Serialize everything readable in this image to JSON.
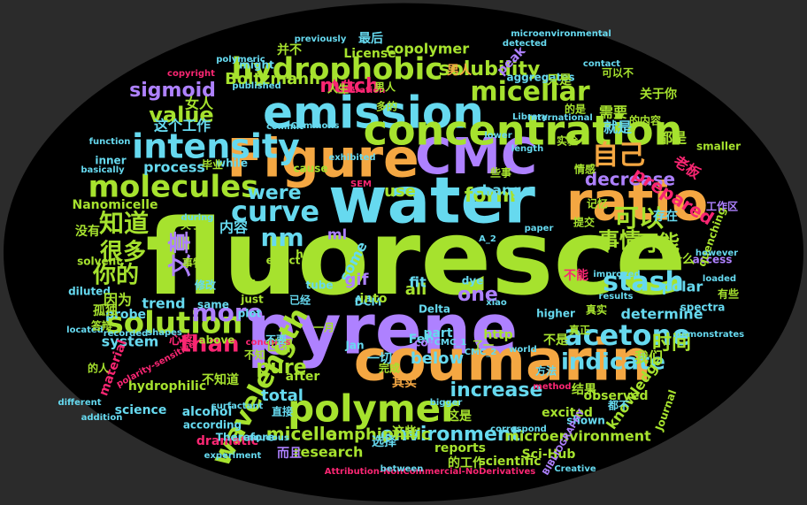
{
  "background": "#2b2b2b",
  "palette": [
    "#a6e22e",
    "#f4a742",
    "#66d9ef",
    "#ae81ff",
    "#f92672",
    "#e6db74",
    "#56b6c2",
    "#fd971f"
  ],
  "words": [
    {
      "text": "fluoresce",
      "color": "#a6e22e"
    },
    {
      "text": "pyrene",
      "color": "#ae81ff"
    },
    {
      "text": "water",
      "color": "#66d9ef"
    },
    {
      "text": "coumarin",
      "color": "#f4a742"
    },
    {
      "text": "ratio",
      "color": "#f4a742"
    },
    {
      "text": "Figure",
      "color": "#f4a742"
    },
    {
      "text": "CMC",
      "color": "#ae81ff"
    },
    {
      "text": "emission",
      "color": "#66d9ef"
    },
    {
      "text": "concentration",
      "color": "#a6e22e"
    },
    {
      "text": "polymer",
      "color": "#a6e22e"
    },
    {
      "text": "intensity",
      "color": "#66d9ef"
    },
    {
      "text": "molecules",
      "color": "#a6e22e"
    },
    {
      "text": "hydrophobic",
      "color": "#a6e22e"
    },
    {
      "text": "solution",
      "color": "#a6e22e"
    },
    {
      "text": "wavelength",
      "color": "#a6e22e"
    },
    {
      "text": "acetone",
      "color": "#66d9ef"
    },
    {
      "text": "micellar",
      "color": "#a6e22e"
    },
    {
      "text": "自己",
      "color": "#f4a742"
    },
    {
      "text": "知道",
      "color": "#a6e22e"
    },
    {
      "text": "可以",
      "color": "#a6e22e"
    },
    {
      "text": "more",
      "color": "#ae81ff"
    },
    {
      "text": "curve",
      "color": "#66d9ef"
    },
    {
      "text": "nm",
      "color": "#66d9ef"
    },
    {
      "text": "than",
      "color": "#f92672"
    },
    {
      "text": "stash",
      "color": "#66d9ef"
    },
    {
      "text": "indicate",
      "color": "#66d9ef"
    },
    {
      "text": "solubility",
      "color": "#a6e22e"
    },
    {
      "text": "value",
      "color": "#a6e22e"
    },
    {
      "text": "were",
      "color": "#66d9ef"
    },
    {
      "text": "form",
      "color": "#a6e22e"
    },
    {
      "text": "environment",
      "color": "#66d9ef"
    },
    {
      "text": "increase",
      "color": "#66d9ef"
    },
    {
      "text": "文章",
      "color": "#ae81ff"
    },
    {
      "text": "很多",
      "color": "#a6e22e"
    },
    {
      "text": "你的",
      "color": "#a6e22e"
    },
    {
      "text": "事情",
      "color": "#a6e22e"
    },
    {
      "text": "可能",
      "color": "#a6e22e"
    },
    {
      "text": "时间",
      "color": "#a6e22e"
    },
    {
      "text": "sigmoid",
      "color": "#ae81ff"
    },
    {
      "text": "Boltzmann",
      "color": "#a6e22e"
    },
    {
      "text": "much",
      "color": "#f92672"
    },
    {
      "text": "pure",
      "color": "#a6e22e"
    },
    {
      "text": "total",
      "color": "#66d9ef"
    },
    {
      "text": "amphiphilic",
      "color": "#a6e22e"
    },
    {
      "text": "micelle",
      "color": "#a6e22e"
    },
    {
      "text": "research",
      "color": "#a6e22e"
    },
    {
      "text": "microenvironment",
      "color": "#a6e22e"
    },
    {
      "text": "copolymer",
      "color": "#a6e22e"
    },
    {
      "text": "determine",
      "color": "#66d9ef"
    },
    {
      "text": "polar",
      "color": "#66d9ef"
    },
    {
      "text": "trend",
      "color": "#66d9ef"
    },
    {
      "text": "process",
      "color": "#66d9ef"
    },
    {
      "text": "change",
      "color": "#66d9ef"
    },
    {
      "text": "below",
      "color": "#66d9ef"
    },
    {
      "text": "system",
      "color": "#66d9ef"
    },
    {
      "text": "probe",
      "color": "#66d9ef"
    },
    {
      "text": "Nanomicelle",
      "color": "#a6e22e"
    },
    {
      "text": "decrease",
      "color": "#ae81ff"
    },
    {
      "text": "prepared",
      "color": "#f92672"
    },
    {
      "text": "knowledge",
      "color": "#a6e22e"
    },
    {
      "text": "observed",
      "color": "#a6e22e"
    },
    {
      "text": "excited",
      "color": "#a6e22e"
    },
    {
      "text": "Sci-Hub",
      "color": "#a6e22e"
    },
    {
      "text": "hydrophilic",
      "color": "#a6e22e"
    },
    {
      "text": "science",
      "color": "#66d9ef"
    },
    {
      "text": "alcohol",
      "color": "#66d9ef"
    },
    {
      "text": "material",
      "color": "#f92672"
    },
    {
      "text": "dramatic",
      "color": "#f92672"
    },
    {
      "text": "diluted",
      "color": "#66d9ef"
    },
    {
      "text": "solvent",
      "color": "#a6e22e"
    },
    {
      "text": "scientific",
      "color": "#a6e22e"
    },
    {
      "text": "reports",
      "color": "#a6e22e"
    },
    {
      "text": "access",
      "color": "#ae81ff"
    },
    {
      "text": "spectra",
      "color": "#66d9ef"
    },
    {
      "text": "peak",
      "color": "#ae81ff"
    },
    {
      "text": "aggregates",
      "color": "#66d9ef"
    },
    {
      "text": "License",
      "color": "#a6e22e"
    },
    {
      "text": "smaller",
      "color": "#a6e22e"
    },
    {
      "text": "quenching",
      "color": "#a6e22e"
    },
    {
      "text": "shown",
      "color": "#66d9ef"
    },
    {
      "text": "Journal",
      "color": "#a6e22e"
    },
    {
      "text": "而且",
      "color": "#ae81ff"
    },
    {
      "text": "都是",
      "color": "#a6e22e"
    },
    {
      "text": "我们",
      "color": "#a6e22e"
    },
    {
      "text": "因为",
      "color": "#a6e22e"
    },
    {
      "text": "世界",
      "color": "#a6e22e"
    },
    {
      "text": "不知道",
      "color": "#a6e22e"
    },
    {
      "text": "人生",
      "color": "#f92672"
    },
    {
      "text": "男人",
      "color": "#f4a742"
    },
    {
      "text": "女人",
      "color": "#a6e22e"
    },
    {
      "text": "需要",
      "color": "#a6e22e"
    },
    {
      "text": "就是",
      "color": "#66d9ef"
    },
    {
      "text": "什么",
      "color": "#a6e22e"
    },
    {
      "text": "存在",
      "color": "#66d9ef"
    },
    {
      "text": "没有",
      "color": "#a6e22e"
    },
    {
      "text": "内容",
      "color": "#66d9ef"
    },
    {
      "text": "孤独",
      "color": "#a6e22e"
    },
    {
      "text": "心疼",
      "color": "#f92672"
    },
    {
      "text": "选择",
      "color": "#66d9ef"
    },
    {
      "text": "一切",
      "color": "#66d9ef"
    },
    {
      "text": "这个工作",
      "color": "#66d9ef"
    },
    {
      "text": "Feb",
      "color": "#66d9ef"
    },
    {
      "text": "http",
      "color": "#a6e22e"
    },
    {
      "text": "ml",
      "color": "#ae81ff"
    },
    {
      "text": "one",
      "color": "#ae81ff"
    },
    {
      "text": "all",
      "color": "#a6e22e"
    },
    {
      "text": "use",
      "color": "#a6e22e"
    },
    {
      "text": "some",
      "color": "#66d9ef"
    },
    {
      "text": "gif",
      "color": "#ae81ff"
    },
    {
      "text": "part",
      "color": "#66d9ef"
    },
    {
      "text": "fit",
      "color": "#66d9ef"
    },
    {
      "text": "DCM",
      "color": "#66d9ef"
    },
    {
      "text": "Delta",
      "color": "#66d9ef"
    },
    {
      "text": "Therefore",
      "color": "#66d9ef"
    },
    {
      "text": "according",
      "color": "#66d9ef"
    },
    {
      "text": "Creative",
      "color": "#66d9ef"
    },
    {
      "text": "BIBLIOGRAPHY",
      "color": "#ae81ff"
    },
    {
      "text": "Attribution-NonCommercial-NoDerivatives",
      "color": "#f92672"
    },
    {
      "text": "International",
      "color": "#66d9ef"
    },
    {
      "text": "Library",
      "color": "#66d9ef"
    },
    {
      "text": "copyright",
      "color": "#f92672"
    },
    {
      "text": "polarity-sensitive",
      "color": "#f92672"
    },
    {
      "text": "previously",
      "color": "#66d9ef"
    },
    {
      "text": "polymeric",
      "color": "#66d9ef"
    },
    {
      "text": "might",
      "color": "#66d9ef"
    },
    {
      "text": "inner",
      "color": "#66d9ef"
    },
    {
      "text": "while",
      "color": "#66d9ef"
    },
    {
      "text": "little",
      "color": "#a6e22e"
    },
    {
      "text": "just",
      "color": "#a6e22e"
    },
    {
      "text": "plot",
      "color": "#66d9ef"
    },
    {
      "text": "same",
      "color": "#66d9ef"
    },
    {
      "text": "above",
      "color": "#a6e22e"
    },
    {
      "text": "after",
      "color": "#a6e22e"
    },
    {
      "text": "help",
      "color": "#a6e22e"
    },
    {
      "text": "cause",
      "color": "#a6e22e"
    },
    {
      "text": "Jan",
      "color": "#66d9ef"
    },
    {
      "text": "into",
      "color": "#a6e22e"
    },
    {
      "text": "dye",
      "color": "#66d9ef"
    },
    {
      "text": "xiao",
      "color": "#66d9ef"
    },
    {
      "text": "core",
      "color": "#ae81ff"
    },
    {
      "text": "higher",
      "color": "#66d9ef"
    },
    {
      "text": "tube",
      "color": "#66d9ef"
    },
    {
      "text": "effect",
      "color": "#a6e22e"
    },
    {
      "text": "function",
      "color": "#66d9ef"
    },
    {
      "text": "basically",
      "color": "#66d9ef"
    },
    {
      "text": "during",
      "color": "#66d9ef"
    },
    {
      "text": "recorded",
      "color": "#66d9ef"
    },
    {
      "text": "located",
      "color": "#66d9ef"
    },
    {
      "text": "different",
      "color": "#66d9ef"
    },
    {
      "text": "addition",
      "color": "#66d9ef"
    },
    {
      "text": "experiment",
      "color": "#66d9ef"
    },
    {
      "text": "between",
      "color": "#66d9ef"
    },
    {
      "text": "exhibited",
      "color": "#66d9ef"
    },
    {
      "text": "improved",
      "color": "#66d9ef"
    },
    {
      "text": "results",
      "color": "#66d9ef"
    },
    {
      "text": "demonstrates",
      "color": "#66d9ef"
    },
    {
      "text": "loaded",
      "color": "#66d9ef"
    },
    {
      "text": "however",
      "color": "#66d9ef"
    },
    {
      "text": "contact",
      "color": "#66d9ef"
    },
    {
      "text": "detected",
      "color": "#66d9ef"
    },
    {
      "text": "published",
      "color": "#66d9ef"
    },
    {
      "text": "microenvironmental",
      "color": "#66d9ef"
    },
    {
      "text": "operation",
      "color": "#f92672"
    },
    {
      "text": "Commons",
      "color": "#66d9ef"
    },
    {
      "text": "commit",
      "color": "#66d9ef"
    },
    {
      "text": "shapes",
      "color": "#66d9ef"
    },
    {
      "text": "concerns",
      "color": "#f92672"
    },
    {
      "text": "surfactant",
      "color": "#66d9ef"
    },
    {
      "text": "aqueous",
      "color": "#66d9ef"
    },
    {
      "text": "correspond",
      "color": "#66d9ef"
    },
    {
      "text": "bigger",
      "color": "#66d9ef"
    },
    {
      "text": "world",
      "color": "#66d9ef"
    },
    {
      "text": "method",
      "color": "#f92672"
    },
    {
      "text": "paper",
      "color": "#66d9ef"
    },
    {
      "text": "lower",
      "color": "#66d9ef"
    },
    {
      "text": "length",
      "color": "#66d9ef"
    },
    {
      "text": "SEM",
      "color": "#f92672"
    },
    {
      "text": "CMC_1",
      "color": "#66d9ef"
    },
    {
      "text": "CMC_2",
      "color": "#66d9ef"
    },
    {
      "text": "A_1",
      "color": "#66d9ef"
    },
    {
      "text": "A_2",
      "color": "#66d9ef"
    },
    {
      "text": "不是",
      "color": "#a6e22e"
    },
    {
      "text": "不能",
      "color": "#f92672"
    },
    {
      "text": "只是",
      "color": "#a6e22e"
    },
    {
      "text": "并不",
      "color": "#a6e22e"
    },
    {
      "text": "最后",
      "color": "#66d9ef"
    },
    {
      "text": "人生",
      "color": "#a6e22e"
    },
    {
      "text": "关于你",
      "color": "#a6e22e"
    },
    {
      "text": "工作区",
      "color": "#ae81ff"
    },
    {
      "text": "有些",
      "color": "#a6e22e"
    },
    {
      "text": "其实",
      "color": "#f4a742"
    },
    {
      "text": "这些",
      "color": "#a6e22e"
    },
    {
      "text": "的工作",
      "color": "#a6e22e"
    },
    {
      "text": "这是",
      "color": "#a6e22e"
    },
    {
      "text": "结果",
      "color": "#a6e22e"
    },
    {
      "text": "完成",
      "color": "#a6e22e"
    },
    {
      "text": "修改",
      "color": "#66d9ef"
    },
    {
      "text": "答辩",
      "color": "#a6e22e"
    },
    {
      "text": "毕业",
      "color": "#a6e22e"
    },
    {
      "text": "不知",
      "color": "#a6e22e"
    },
    {
      "text": "真实",
      "color": "#a6e22e"
    },
    {
      "text": "老板",
      "color": "#f92672"
    },
    {
      "text": "男人",
      "color": "#a6e22e"
    },
    {
      "text": "的是",
      "color": "#a6e22e"
    },
    {
      "text": "的人",
      "color": "#a6e22e"
    },
    {
      "text": "多的",
      "color": "#a6e22e"
    },
    {
      "text": "关于",
      "color": "#a6e22e"
    },
    {
      "text": "不要",
      "color": "#66d9ef"
    },
    {
      "text": "已经",
      "color": "#66d9ef"
    },
    {
      "text": "一月",
      "color": "#a6e22e"
    },
    {
      "text": "了一",
      "color": "#a6e22e"
    },
    {
      "text": "情感",
      "color": "#a6e22e"
    },
    {
      "text": "些事",
      "color": "#a6e22e"
    },
    {
      "text": "记忆",
      "color": "#a6e22e"
    },
    {
      "text": "提交",
      "color": "#a6e22e"
    },
    {
      "text": "实验",
      "color": "#a6e22e"
    },
    {
      "text": "可以不",
      "color": "#a6e22e"
    },
    {
      "text": "的内容",
      "color": "#a6e22e"
    },
    {
      "text": "都不",
      "color": "#66d9ef"
    },
    {
      "text": "直接",
      "color": "#66d9ef"
    },
    {
      "text": "方法",
      "color": "#66d9ef"
    },
    {
      "text": "真正",
      "color": "#a6e22e"
    },
    {
      "text": "事物",
      "color": "#a6e22e"
    }
  ]
}
